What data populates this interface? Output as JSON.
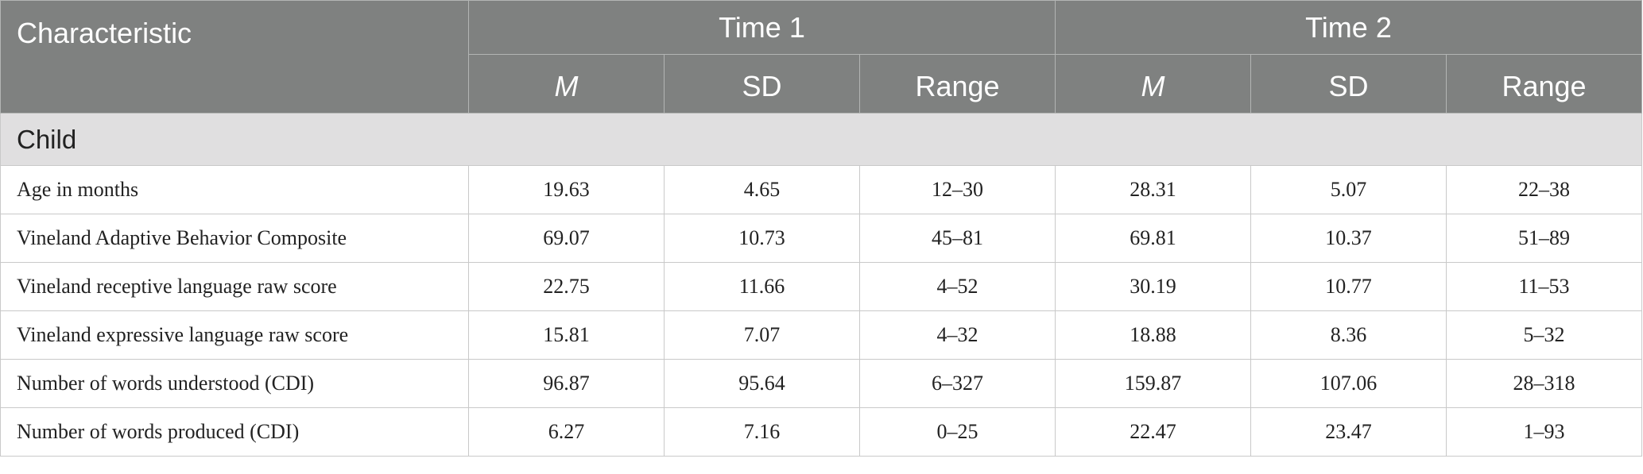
{
  "header": {
    "characteristic": "Characteristic",
    "groups": [
      {
        "title": "Time 1",
        "cols": [
          "M",
          "SD",
          "Range"
        ]
      },
      {
        "title": "Time 2",
        "cols": [
          "M",
          "SD",
          "Range"
        ]
      }
    ]
  },
  "section": {
    "title": "Child"
  },
  "rows": [
    {
      "label": "Age in months",
      "t1_m": "19.63",
      "t1_sd": "4.65",
      "t1_range": "12–30",
      "t2_m": "28.31",
      "t2_sd": "5.07",
      "t2_range": "22–38"
    },
    {
      "label": "Vineland Adaptive Behavior Composite",
      "t1_m": "69.07",
      "t1_sd": "10.73",
      "t1_range": "45–81",
      "t2_m": "69.81",
      "t2_sd": "10.37",
      "t2_range": "51–89"
    },
    {
      "label": "Vineland receptive language raw score",
      "t1_m": "22.75",
      "t1_sd": "11.66",
      "t1_range": "4–52",
      "t2_m": "30.19",
      "t2_sd": "10.77",
      "t2_range": "11–53"
    },
    {
      "label": "Vineland expressive language raw score",
      "t1_m": "15.81",
      "t1_sd": "7.07",
      "t1_range": "4–32",
      "t2_m": "18.88",
      "t2_sd": "8.36",
      "t2_range": "5–32"
    },
    {
      "label": "Number of words understood (CDI)",
      "t1_m": "96.87",
      "t1_sd": "95.64",
      "t1_range": "6–327",
      "t2_m": "159.87",
      "t2_sd": "107.06",
      "t2_range": "28–318"
    },
    {
      "label": "Number of words produced (CDI)",
      "t1_m": "6.27",
      "t1_sd": "7.16",
      "t1_range": "0–25",
      "t2_m": "22.47",
      "t2_sd": "23.47",
      "t2_range": "1–93"
    }
  ]
}
